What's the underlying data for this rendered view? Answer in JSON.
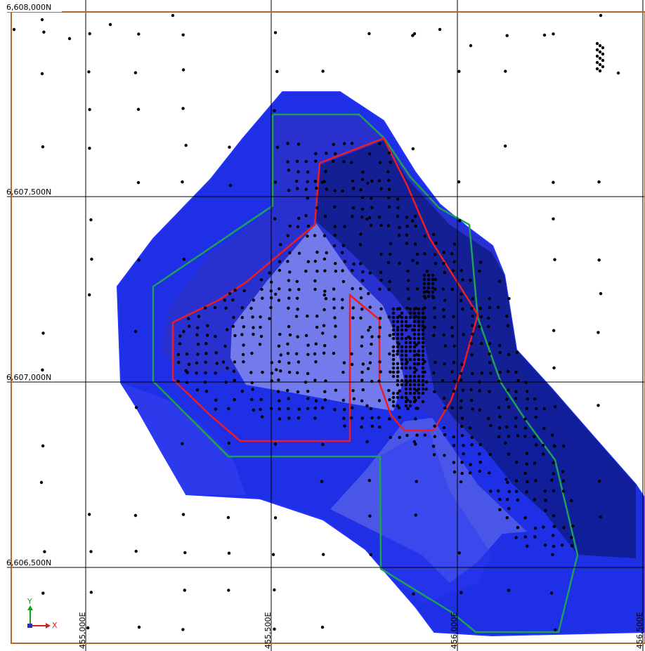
{
  "map": {
    "grid_labels": {
      "northing": [
        "6,608,000N",
        "6,607,500N",
        "6,607,000N",
        "6,606,500N"
      ],
      "easting": [
        "455,000E",
        "455,500E",
        "456,000E",
        "456,500E"
      ]
    },
    "axis_triad": {
      "x_label": "X",
      "y_label": "Y"
    },
    "colors": {
      "background": "#ffffff",
      "gridline": "#000000",
      "boundary": "#b06b2a",
      "zone_outer": "#1f2fe6",
      "zone_mid": "#1a26b8",
      "zone_dark": "#0e1980",
      "zone_light": "#7b84ee",
      "green_outline": "#1ea05a",
      "red_outline": "#ec1c24",
      "drillhole": "#000000"
    }
  }
}
